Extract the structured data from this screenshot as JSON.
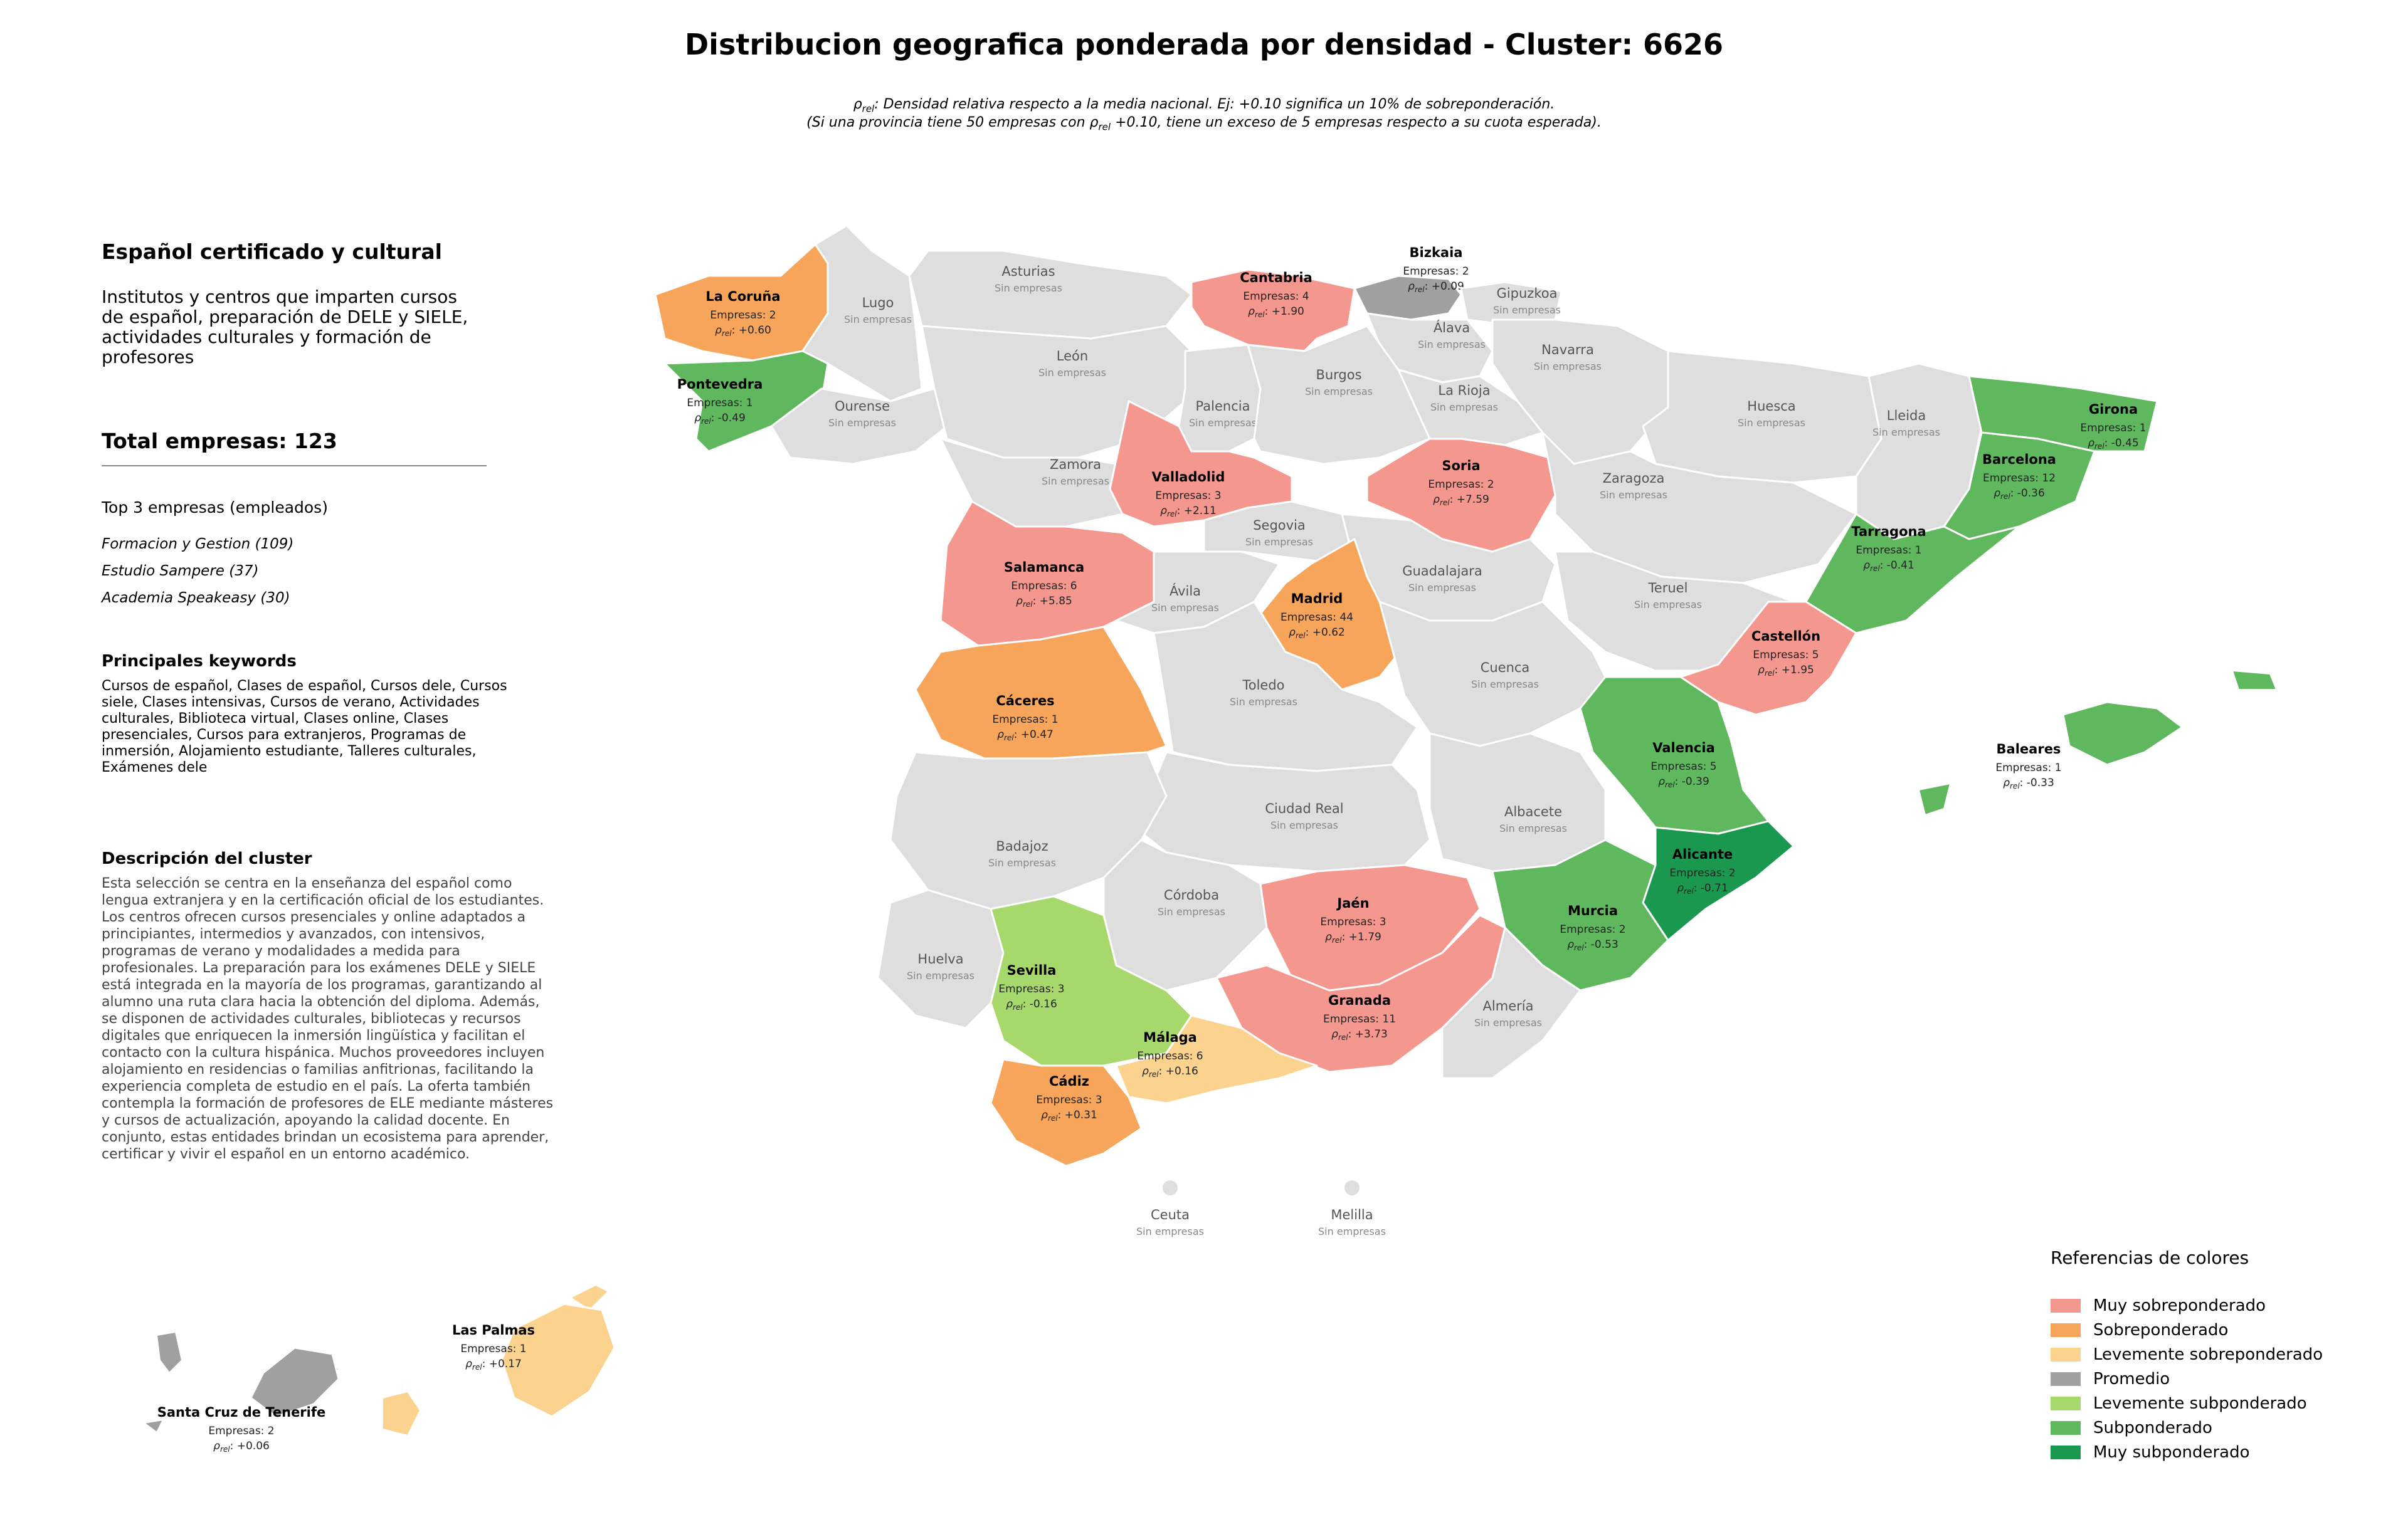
{
  "title": "Distribucion geografica ponderada por densidad - Cluster: 6626",
  "note": {
    "line1_pre": "ρ",
    "line1_sub": "rel",
    "line1_post": ": Densidad relativa respecto a la media nacional. Ej: +0.10 significa un 10% de sobreponderación.",
    "line2_pre": "(Si una provincia tiene 50 empresas con ρ",
    "line2_sub": "rel",
    "line2_post": " +0.10, tiene un exceso de 5 empresas respecto a su cuota esperada)."
  },
  "panel": {
    "cluster_title": "Español certificado y cultural",
    "cluster_subtitle": "Institutos y centros que imparten cursos de español, preparación de DELE y SIELE, actividades culturales y formación de profesores",
    "total": "Total empresas: 123",
    "top_title": "Top 3 empresas (empleados)",
    "top": [
      "Formacion y Gestion (109)",
      "Estudio Sampere (37)",
      "Academia Speakeasy (30)"
    ],
    "keywords_title": "Principales keywords",
    "keywords": "Cursos de español, Clases de español, Cursos dele, Cursos siele, Clases intensivas, Cursos de verano, Actividades culturales, Biblioteca virtual, Clases online, Clases presenciales, Cursos para extranjeros, Programas de inmersión, Alojamiento estudiante, Talleres culturales, Exámenes dele",
    "desc_title": "Descripción del cluster",
    "desc": "Esta selección se centra en la enseñanza del español como lengua extranjera y en la certificación oficial de los estudiantes. Los centros ofrecen cursos presenciales y online adaptados a principiantes, intermedios y avanzados, con intensivos, programas de verano y modalidades a medida para profesionales. La preparación para los exámenes DELE y SIELE está integrada en la mayoría de los programas, garantizando al alumno una ruta clara hacia la obtención del diploma. Además, se disponen de actividades culturales, bibliotecas y recursos digitales que enriquecen la inmersión lingüística y facilitan el contacto con la cultura hispánica. Muchos proveedores incluyen alojamiento en residencias o familias anfitrionas, facilitando la experiencia completa de estudio en el país. La oferta también contempla la formación de profesores de ELE mediante másteres y cursos de actualización, apoyando la calidad docente. En conjunto, estas entidades brindan un ecosistema para aprender, certificar y vivir el español en un entorno académico."
  },
  "colors": {
    "muy_sobre": "#f4978e",
    "sobre": "#f6a55b",
    "leve_sobre": "#fbd38f",
    "promedio": "#a0a0a0",
    "leve_sub": "#a7d86c",
    "sub": "#5fb85e",
    "muy_sub": "#1a9850",
    "sin": "#dedede"
  },
  "legend": {
    "title": "Referencias de colores",
    "items": [
      {
        "label": "Muy sobreponderado",
        "color": "#f4978e"
      },
      {
        "label": "Sobreponderado",
        "color": "#f6a55b"
      },
      {
        "label": "Levemente sobreponderado",
        "color": "#fbd38f"
      },
      {
        "label": "Promedio",
        "color": "#a0a0a0"
      },
      {
        "label": "Levemente subponderado",
        "color": "#a7d86c"
      },
      {
        "label": "Subponderado",
        "color": "#5fb85e"
      },
      {
        "label": "Muy subponderado",
        "color": "#1a9850"
      }
    ]
  },
  "empty_label": "Sin empresas",
  "rho_prefix": "ρ",
  "rho_sub": "rel",
  "provinces": [
    {
      "name": "La Coruña",
      "count": "Empresas: 2",
      "rho": "+0.60",
      "cat": "sobre"
    },
    {
      "name": "Lugo",
      "cat": "sin"
    },
    {
      "name": "Asturias",
      "cat": "sin"
    },
    {
      "name": "Cantabria",
      "count": "Empresas: 4",
      "rho": "+1.90",
      "cat": "muy_sobre"
    },
    {
      "name": "Bizkaia",
      "count": "Empresas: 2",
      "rho": "+0.09",
      "cat": "promedio"
    },
    {
      "name": "Gipuzkoa",
      "cat": "sin"
    },
    {
      "name": "Álava",
      "cat": "sin"
    },
    {
      "name": "Navarra",
      "cat": "sin"
    },
    {
      "name": "Pontevedra",
      "count": "Empresas: 1",
      "rho": "-0.49",
      "cat": "sub"
    },
    {
      "name": "Ourense",
      "cat": "sin"
    },
    {
      "name": "León",
      "cat": "sin"
    },
    {
      "name": "Palencia",
      "cat": "sin"
    },
    {
      "name": "Burgos",
      "cat": "sin"
    },
    {
      "name": "La Rioja",
      "cat": "sin"
    },
    {
      "name": "Huesca",
      "cat": "sin"
    },
    {
      "name": "Lleida",
      "cat": "sin"
    },
    {
      "name": "Girona",
      "count": "Empresas: 1",
      "rho": "-0.45",
      "cat": "sub"
    },
    {
      "name": "Barcelona",
      "count": "Empresas: 12",
      "rho": "-0.36",
      "cat": "sub"
    },
    {
      "name": "Zamora",
      "cat": "sin"
    },
    {
      "name": "Valladolid",
      "count": "Empresas: 3",
      "rho": "+2.11",
      "cat": "muy_sobre"
    },
    {
      "name": "Soria",
      "count": "Empresas: 2",
      "rho": "+7.59",
      "cat": "muy_sobre"
    },
    {
      "name": "Zaragoza",
      "cat": "sin"
    },
    {
      "name": "Tarragona",
      "count": "Empresas: 1",
      "rho": "-0.41",
      "cat": "sub"
    },
    {
      "name": "Salamanca",
      "count": "Empresas: 6",
      "rho": "+5.85",
      "cat": "muy_sobre"
    },
    {
      "name": "Segovia",
      "cat": "sin"
    },
    {
      "name": "Ávila",
      "cat": "sin"
    },
    {
      "name": "Guadalajara",
      "cat": "sin"
    },
    {
      "name": "Teruel",
      "cat": "sin"
    },
    {
      "name": "Madrid",
      "count": "Empresas: 44",
      "rho": "+0.62",
      "cat": "sobre"
    },
    {
      "name": "Castellón",
      "count": "Empresas: 5",
      "rho": "+1.95",
      "cat": "muy_sobre"
    },
    {
      "name": "Cáceres",
      "count": "Empresas: 1",
      "rho": "+0.47",
      "cat": "sobre"
    },
    {
      "name": "Toledo",
      "cat": "sin"
    },
    {
      "name": "Cuenca",
      "cat": "sin"
    },
    {
      "name": "Valencia",
      "count": "Empresas: 5",
      "rho": "-0.39",
      "cat": "sub"
    },
    {
      "name": "Baleares",
      "count": "Empresas: 1",
      "rho": "-0.33",
      "cat": "sub"
    },
    {
      "name": "Ciudad Real",
      "cat": "sin"
    },
    {
      "name": "Albacete",
      "cat": "sin"
    },
    {
      "name": "Badajoz",
      "cat": "sin"
    },
    {
      "name": "Alicante",
      "count": "Empresas: 2",
      "rho": "-0.71",
      "cat": "muy_sub"
    },
    {
      "name": "Córdoba",
      "cat": "sin"
    },
    {
      "name": "Jaén",
      "count": "Empresas: 3",
      "rho": "+1.79",
      "cat": "muy_sobre"
    },
    {
      "name": "Murcia",
      "count": "Empresas: 2",
      "rho": "-0.53",
      "cat": "sub"
    },
    {
      "name": "Huelva",
      "cat": "sin"
    },
    {
      "name": "Sevilla",
      "count": "Empresas: 3",
      "rho": "-0.16",
      "cat": "leve_sub"
    },
    {
      "name": "Granada",
      "count": "Empresas: 11",
      "rho": "+3.73",
      "cat": "muy_sobre"
    },
    {
      "name": "Almería",
      "cat": "sin"
    },
    {
      "name": "Málaga",
      "count": "Empresas: 6",
      "rho": "+0.16",
      "cat": "leve_sobre"
    },
    {
      "name": "Cádiz",
      "count": "Empresas: 3",
      "rho": "+0.31",
      "cat": "sobre"
    },
    {
      "name": "Ceuta",
      "cat": "sin"
    },
    {
      "name": "Melilla",
      "cat": "sin"
    },
    {
      "name": "Las Palmas",
      "count": "Empresas: 1",
      "rho": "+0.17",
      "cat": "leve_sobre"
    },
    {
      "name": "Santa Cruz de Tenerife",
      "count": "Empresas: 2",
      "rho": "+0.06",
      "cat": "promedio"
    }
  ]
}
